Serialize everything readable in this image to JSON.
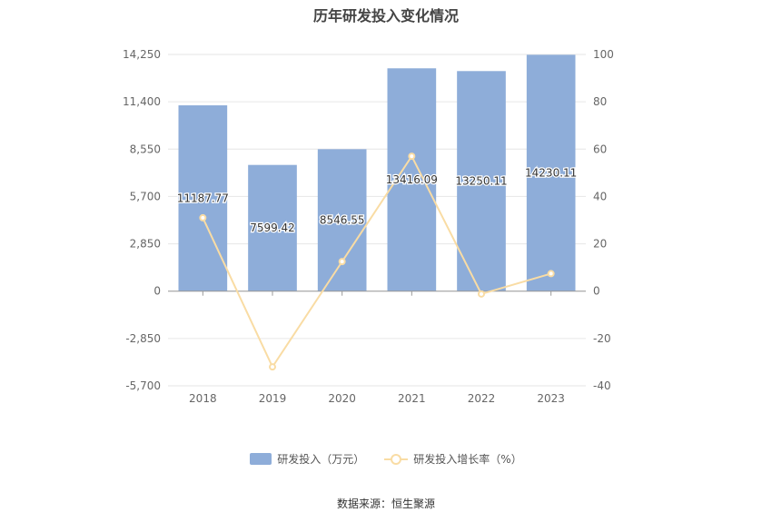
{
  "title": "历年研发投入变化情况",
  "source_note": "数据来源：恒生聚源",
  "colors": {
    "bar": "#8eadd9",
    "line": "#f9dca4",
    "grid": "#e6e6e6",
    "axis": "#999999",
    "tick_text": "#666666"
  },
  "chart_data": {
    "type": "bar",
    "categories": [
      "2018",
      "2019",
      "2020",
      "2021",
      "2022",
      "2023"
    ],
    "series": [
      {
        "name": "研发投入（万元）",
        "type": "bar",
        "axis": "left",
        "values": [
          11187.77,
          7599.42,
          8546.55,
          13416.09,
          13250.11,
          14230.11
        ],
        "labels": [
          "11187.77",
          "7599.42",
          "8546.55",
          "13416.09",
          "13250.11",
          "14230.11"
        ]
      },
      {
        "name": "研发投入增长率（%）",
        "type": "line",
        "axis": "right",
        "values": [
          31,
          -32,
          12.5,
          57,
          -1.2,
          7.4
        ]
      }
    ],
    "y_left": {
      "min": -5700,
      "max": 14250,
      "ticks": [
        -5700,
        -2850,
        0,
        2850,
        5700,
        8550,
        11400,
        14250
      ],
      "tick_labels": [
        "-5,700",
        "-2,850",
        "0",
        "2,850",
        "5,700",
        "8,550",
        "11,400",
        "14,250"
      ]
    },
    "y_right": {
      "min": -40,
      "max": 100,
      "ticks": [
        -40,
        -20,
        0,
        20,
        40,
        60,
        80,
        100
      ],
      "tick_labels": [
        "-40",
        "-20",
        "0",
        "20",
        "40",
        "60",
        "80",
        "100"
      ]
    },
    "grid": true,
    "legend_position": "bottom"
  }
}
